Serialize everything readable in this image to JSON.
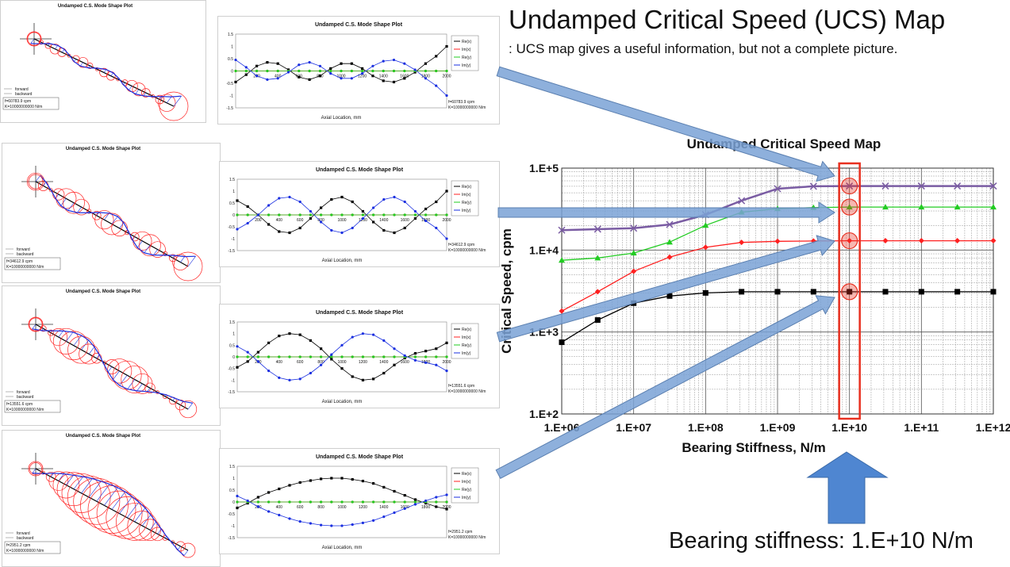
{
  "title": "Undamped Critical Speed (UCS) Map",
  "subtitle": ": UCS map gives a useful information, but not a complete picture.",
  "note": "Bearing stiffness: 1.E+10 N/m",
  "colors": {
    "black": "#000000",
    "red": "#ff2020",
    "green": "#22cc22",
    "blue": "#1a2fe0",
    "purple": "#7a5ca3",
    "highlight": "#e83020",
    "arrow": "#7aa2d6"
  },
  "mode_panels": [
    {
      "title": "Undamped C.S. Mode Shape Plot",
      "legend": [
        "forward",
        "backward"
      ],
      "freq_label": "f=60783.9 cpm",
      "stiff_label": "K=10000000000 N/m"
    },
    {
      "title": "Undamped C.S. Mode Shape Plot",
      "legend": [
        "forward",
        "backward"
      ],
      "freq_label": "f=34612.9 cpm",
      "stiff_label": "K=10000000000 N/m"
    },
    {
      "title": "Undamped C.S. Mode Shape Plot",
      "legend": [
        "forward",
        "backward"
      ],
      "freq_label": "f=13551.6 cpm",
      "stiff_label": "K=10000000000 N/m"
    },
    {
      "title": "Undamped C.S. Mode Shape Plot",
      "legend": [
        "forward",
        "backward"
      ],
      "freq_label": "f=2951.2 cpm",
      "stiff_label": "K=10000000000 N/m"
    }
  ],
  "chart_data": [
    {
      "type": "line",
      "title": "Undamped C.S. Mode Shape Plot",
      "xlabel": "Axial Location, mm",
      "ylabel": "",
      "xlim": [
        0,
        2000
      ],
      "ylim": [
        -1.5,
        1.5
      ],
      "x_ticks": [
        "200",
        "400",
        "600",
        "800",
        "1000",
        "1200",
        "1400",
        "1600",
        "1800",
        "2000"
      ],
      "y_ticks": [
        "1.5",
        "1",
        "0.5",
        "0",
        "-0.5",
        "-1",
        "-1.5"
      ],
      "legend_entries": [
        "Re(x)",
        "Im(x)",
        "Re(y)",
        "Im(y)"
      ],
      "annotation": [
        "f=60783.9 cpm",
        "K=10000000000 N/m"
      ],
      "x": [
        0,
        100,
        200,
        300,
        400,
        500,
        600,
        700,
        800,
        900,
        1000,
        1100,
        1200,
        1300,
        1400,
        1500,
        1600,
        1700,
        1800,
        1900,
        2000
      ],
      "series": [
        {
          "name": "Re(x)",
          "values": [
            -0.45,
            -0.15,
            0.2,
            0.35,
            0.3,
            0.05,
            -0.25,
            -0.35,
            -0.2,
            0.1,
            0.3,
            0.3,
            0.1,
            -0.2,
            -0.4,
            -0.45,
            -0.3,
            -0.05,
            0.3,
            0.6,
            1.0
          ]
        },
        {
          "name": "Im(x)",
          "values": [
            0,
            0,
            0,
            0,
            0,
            0,
            0,
            0,
            0,
            0,
            0,
            0,
            0,
            0,
            0,
            0,
            0,
            0,
            0,
            0,
            0
          ]
        },
        {
          "name": "Re(y)",
          "values": [
            0,
            0,
            0,
            0,
            0,
            0,
            0,
            0,
            0,
            0,
            0,
            0,
            0,
            0,
            0,
            0,
            0,
            0,
            0,
            0,
            0
          ]
        },
        {
          "name": "Im(y)",
          "values": [
            0.45,
            0.15,
            -0.2,
            -0.35,
            -0.3,
            -0.05,
            0.25,
            0.35,
            0.2,
            -0.1,
            -0.3,
            -0.3,
            -0.1,
            0.2,
            0.4,
            0.45,
            0.3,
            0.05,
            -0.3,
            -0.6,
            -1.0
          ]
        }
      ]
    },
    {
      "type": "line",
      "title": "Undamped C.S. Mode Shape Plot",
      "xlabel": "Axial Location, mm",
      "ylabel": "",
      "xlim": [
        0,
        2000
      ],
      "ylim": [
        -1.5,
        1.5
      ],
      "x_ticks": [
        "200",
        "400",
        "600",
        "800",
        "1000",
        "1200",
        "1400",
        "1600",
        "1800",
        "2000"
      ],
      "y_ticks": [
        "1.5",
        "1",
        "0.5",
        "0",
        "-0.5",
        "-1",
        "-1.5"
      ],
      "legend_entries": [
        "Re(x)",
        "Im(x)",
        "Re(y)",
        "Im(y)"
      ],
      "annotation": [
        "f=34612.9 cpm",
        "K=10000000000 N/m"
      ],
      "x": [
        0,
        100,
        200,
        300,
        400,
        500,
        600,
        700,
        800,
        900,
        1000,
        1100,
        1200,
        1300,
        1400,
        1500,
        1600,
        1700,
        1800,
        1900,
        2000
      ],
      "series": [
        {
          "name": "Re(x)",
          "values": [
            0.6,
            0.35,
            0.0,
            -0.4,
            -0.7,
            -0.75,
            -0.55,
            -0.15,
            0.3,
            0.65,
            0.75,
            0.55,
            0.15,
            -0.3,
            -0.65,
            -0.75,
            -0.55,
            -0.15,
            0.25,
            0.55,
            1.0
          ]
        },
        {
          "name": "Im(x)",
          "values": [
            0,
            0,
            0,
            0,
            0,
            0,
            0,
            0,
            0,
            0,
            0,
            0,
            0,
            0,
            0,
            0,
            0,
            0,
            0,
            0,
            0
          ]
        },
        {
          "name": "Re(y)",
          "values": [
            0,
            0,
            0,
            0,
            0,
            0,
            0,
            0,
            0,
            0,
            0,
            0,
            0,
            0,
            0,
            0,
            0,
            0,
            0,
            0,
            0
          ]
        },
        {
          "name": "Im(y)",
          "values": [
            -0.6,
            -0.35,
            0.0,
            0.4,
            0.7,
            0.75,
            0.55,
            0.15,
            -0.3,
            -0.65,
            -0.75,
            -0.55,
            -0.15,
            0.3,
            0.65,
            0.75,
            0.55,
            0.15,
            -0.25,
            -0.55,
            -1.0
          ]
        }
      ]
    },
    {
      "type": "line",
      "title": "Undamped C.S. Mode Shape Plot",
      "xlabel": "Axial Location, mm",
      "ylabel": "",
      "xlim": [
        0,
        2000
      ],
      "ylim": [
        -1.5,
        1.5
      ],
      "x_ticks": [
        "200",
        "400",
        "600",
        "800",
        "1000",
        "1200",
        "1400",
        "1600",
        "1800",
        "2000"
      ],
      "y_ticks": [
        "1.5",
        "1",
        "0.5",
        "0",
        "-0.5",
        "-1",
        "-1.5"
      ],
      "legend_entries": [
        "Re(x)",
        "Im(x)",
        "Re(y)",
        "Im(y)"
      ],
      "annotation": [
        "f=13551.6 cpm",
        "K=10000000000 N/m"
      ],
      "x": [
        0,
        100,
        200,
        300,
        400,
        500,
        600,
        700,
        800,
        900,
        1000,
        1100,
        1200,
        1300,
        1400,
        1500,
        1600,
        1700,
        1800,
        1900,
        2000
      ],
      "series": [
        {
          "name": "Re(x)",
          "values": [
            -0.45,
            -0.2,
            0.2,
            0.6,
            0.9,
            1.0,
            0.95,
            0.7,
            0.35,
            -0.1,
            -0.5,
            -0.85,
            -1.0,
            -0.95,
            -0.7,
            -0.35,
            -0.05,
            0.15,
            0.25,
            0.35,
            0.6
          ]
        },
        {
          "name": "Im(x)",
          "values": [
            0,
            0,
            0,
            0,
            0,
            0,
            0,
            0,
            0,
            0,
            0,
            0,
            0,
            0,
            0,
            0,
            0,
            0,
            0,
            0,
            0
          ]
        },
        {
          "name": "Re(y)",
          "values": [
            0,
            0,
            0,
            0,
            0,
            0,
            0,
            0,
            0,
            0,
            0,
            0,
            0,
            0,
            0,
            0,
            0,
            0,
            0,
            0,
            0
          ]
        },
        {
          "name": "Im(y)",
          "values": [
            0.45,
            0.2,
            -0.2,
            -0.6,
            -0.9,
            -1.0,
            -0.95,
            -0.7,
            -0.35,
            0.1,
            0.5,
            0.85,
            1.0,
            0.95,
            0.7,
            0.35,
            0.05,
            -0.15,
            -0.25,
            -0.35,
            -0.6
          ]
        }
      ]
    },
    {
      "type": "line",
      "title": "Undamped C.S. Mode Shape Plot",
      "xlabel": "Axial Location, mm",
      "ylabel": "",
      "xlim": [
        0,
        2000
      ],
      "ylim": [
        -1.5,
        1.5
      ],
      "x_ticks": [
        "200",
        "400",
        "600",
        "800",
        "1000",
        "1200",
        "1400",
        "1600",
        "1800",
        "2000"
      ],
      "y_ticks": [
        "1.5",
        "1",
        "0.5",
        "0",
        "-0.5",
        "-1",
        "-1.5"
      ],
      "legend_entries": [
        "Re(x)",
        "Im(x)",
        "Re(y)",
        "Im(y)"
      ],
      "annotation": [
        "f=2951.2 cpm",
        "K=10000000000 N/m"
      ],
      "x": [
        0,
        100,
        200,
        300,
        400,
        500,
        600,
        700,
        800,
        900,
        1000,
        1100,
        1200,
        1300,
        1400,
        1500,
        1600,
        1700,
        1800,
        1900,
        2000
      ],
      "series": [
        {
          "name": "Re(x)",
          "values": [
            -0.25,
            -0.05,
            0.2,
            0.4,
            0.55,
            0.7,
            0.82,
            0.9,
            0.97,
            1.0,
            1.0,
            0.95,
            0.88,
            0.78,
            0.62,
            0.45,
            0.28,
            0.1,
            -0.05,
            -0.2,
            -0.3
          ]
        },
        {
          "name": "Im(x)",
          "values": [
            0,
            0,
            0,
            0,
            0,
            0,
            0,
            0,
            0,
            0,
            0,
            0,
            0,
            0,
            0,
            0,
            0,
            0,
            0,
            0,
            0
          ]
        },
        {
          "name": "Re(y)",
          "values": [
            0,
            0,
            0,
            0,
            0,
            0,
            0,
            0,
            0,
            0,
            0,
            0,
            0,
            0,
            0,
            0,
            0,
            0,
            0,
            0,
            0
          ]
        },
        {
          "name": "Im(y)",
          "values": [
            0.25,
            0.05,
            -0.2,
            -0.4,
            -0.55,
            -0.7,
            -0.82,
            -0.9,
            -0.97,
            -1.0,
            -1.0,
            -0.95,
            -0.88,
            -0.78,
            -0.62,
            -0.45,
            -0.28,
            -0.1,
            0.05,
            0.2,
            0.3
          ]
        }
      ]
    },
    {
      "type": "line",
      "title": "Undamped Critical Speed Map",
      "xlabel": "Bearing Stiffness, N/m",
      "ylabel": "Critical Speed, cpm",
      "scale": "log-log",
      "grid": true,
      "xlim": [
        1000000,
        1000000000000
      ],
      "ylim": [
        100,
        100000
      ],
      "x_ticks": [
        "1.E+06",
        "1.E+07",
        "1.E+08",
        "1.E+09",
        "1.E+10",
        "1.E+11",
        "1.E+12"
      ],
      "y_ticks": [
        "1.E+5",
        "1.E+4",
        "1.E+3",
        "1.E+2"
      ],
      "highlight_x": 10000000000,
      "x": [
        1000000,
        3160000,
        10000000,
        31600000,
        100000000,
        316000000,
        1000000000,
        3160000000,
        10000000000,
        31600000000,
        100000000000,
        316000000000,
        1000000000000
      ],
      "series": [
        {
          "name": "",
          "color": "#000000",
          "marker": "square",
          "values": [
            750,
            1400,
            2250,
            2750,
            3000,
            3100,
            3100,
            3100,
            3100,
            3100,
            3100,
            3100,
            3100
          ]
        },
        {
          "name": "",
          "color": "#ff2020",
          "marker": "diamond",
          "values": [
            1800,
            3100,
            5500,
            8200,
            10800,
            12400,
            12800,
            12900,
            13000,
            13000,
            13000,
            13000,
            13000
          ]
        },
        {
          "name": "",
          "color": "#22cc22",
          "marker": "triangle",
          "values": [
            7500,
            8000,
            9200,
            12500,
            20000,
            29000,
            32000,
            33000,
            33500,
            33500,
            33500,
            33500,
            33500
          ]
        },
        {
          "name": "",
          "color": "#7a5ca3",
          "marker": "cross",
          "values": [
            17500,
            18000,
            18500,
            20500,
            27000,
            40000,
            56000,
            60000,
            60500,
            60500,
            60500,
            60500,
            60500
          ]
        }
      ]
    }
  ]
}
